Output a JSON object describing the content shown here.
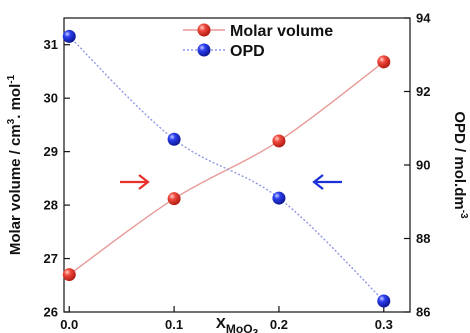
{
  "chart_data": {
    "type": "line",
    "x": [
      0.0,
      0.1,
      0.2,
      0.3
    ],
    "x_ticks": [
      "0.0",
      "0.1",
      "0.2",
      "0.3"
    ],
    "xlabel": {
      "main": "X",
      "sub": "MoO",
      "sub2": "3"
    },
    "xlim": [
      -0.005,
      0.325
    ],
    "series": [
      {
        "name": "Molar volume",
        "axis": "left",
        "values": [
          26.7,
          28.12,
          29.2,
          30.68
        ],
        "color": "#e8302a",
        "line_color": "#e89a96"
      },
      {
        "name": "OPD",
        "axis": "right",
        "values": [
          93.5,
          90.7,
          89.1,
          86.3
        ],
        "color": "#1a2fd8",
        "line_color": "#8f98e6"
      }
    ],
    "y_left": {
      "label": {
        "main": "Molar volume / cm",
        "sup1": "3",
        "mid": ". mol",
        "sup2": "-1"
      },
      "lim": [
        26,
        31.5
      ],
      "ticks": [
        26,
        27,
        28,
        29,
        30,
        31
      ]
    },
    "y_right": {
      "label": {
        "main": "OPD / mol.dm",
        "sup": "-3"
      },
      "lim": [
        86,
        94
      ],
      "ticks": [
        86,
        88,
        90,
        92,
        94
      ]
    },
    "legend": {
      "placement": "top-center"
    },
    "annotations": [
      {
        "type": "arrow",
        "direction": "right",
        "color": "#e8302a"
      },
      {
        "type": "arrow",
        "direction": "left",
        "color": "#1a2fd8"
      }
    ],
    "grid": false
  }
}
